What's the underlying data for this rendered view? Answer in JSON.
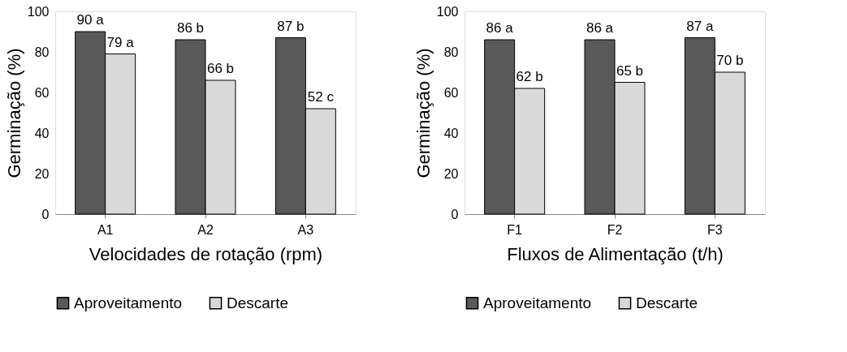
{
  "chart_data": [
    {
      "type": "bar",
      "categories": [
        "A1",
        "A2",
        "A3"
      ],
      "xlabel": "Velocidades de rotação (rpm)",
      "ylabel": "Germinação (%)",
      "ylim": [
        0,
        100
      ],
      "yticks": [
        0,
        20,
        40,
        60,
        80,
        100
      ],
      "legend": "bottom",
      "series": [
        {
          "name": "Aproveitamento",
          "color": "#595959",
          "values": [
            90,
            86,
            87
          ],
          "value_labels": [
            "90 a",
            "86 b",
            "87 b"
          ]
        },
        {
          "name": "Descarte",
          "color": "#d9d9d9",
          "values": [
            79,
            66,
            52
          ],
          "value_labels": [
            "79 a",
            "66 b",
            "52 c"
          ]
        }
      ]
    },
    {
      "type": "bar",
      "categories": [
        "F1",
        "F2",
        "F3"
      ],
      "xlabel": "Fluxos de Alimentação (t/h)",
      "ylabel": "Germinação (%)",
      "ylim": [
        0,
        100
      ],
      "yticks": [
        0,
        20,
        40,
        60,
        80,
        100
      ],
      "legend": "bottom",
      "series": [
        {
          "name": "Aproveitamento",
          "color": "#595959",
          "values": [
            86,
            86,
            87
          ],
          "value_labels": [
            "86 a",
            "86 a",
            "87 a"
          ]
        },
        {
          "name": "Descarte",
          "color": "#d9d9d9",
          "values": [
            62,
            65,
            70
          ],
          "value_labels": [
            "62 b",
            "65 b",
            "70 b"
          ]
        }
      ]
    }
  ]
}
